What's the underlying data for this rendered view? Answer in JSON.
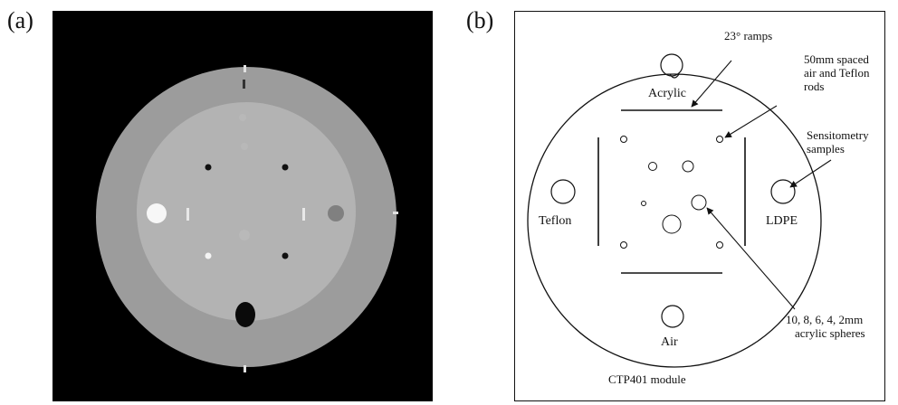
{
  "panels": {
    "a": {
      "label": "(a)"
    },
    "b": {
      "label": "(b)",
      "material_labels": {
        "acrylic": "Acrylic",
        "teflon": "Teflon",
        "ldpe": "LDPE",
        "air": "Air"
      },
      "annotations": {
        "ramps": "23° ramps",
        "rods_line1": "50mm spaced",
        "rods_line2": "air and Teflon",
        "rods_line3": "rods",
        "sensitometry_line1": "Sensitometry",
        "sensitometry_line2": "samples",
        "spheres_line1": "10, 8, 6, 4, 2mm",
        "spheres_line2": "acrylic spheres"
      },
      "module_label": "CTP401 module"
    }
  },
  "colors": {
    "ct_background": "#000000",
    "ct_outer_ring": "#9c9c9c",
    "ct_inner_disk": "#b3b3b3",
    "schematic_stroke": "#111111"
  }
}
